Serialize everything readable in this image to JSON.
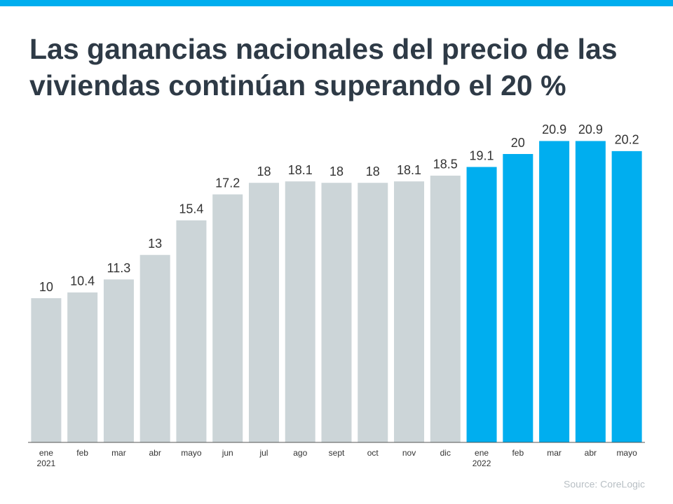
{
  "chart_data": {
    "type": "bar",
    "title": "Las ganancias nacionales del precio de las viviendas continúan superando el 20 %",
    "categories": [
      [
        "ene",
        "2021"
      ],
      [
        "feb"
      ],
      [
        "mar"
      ],
      [
        "abr"
      ],
      [
        "mayo"
      ],
      [
        "jun"
      ],
      [
        "jul"
      ],
      [
        "ago"
      ],
      [
        "sept"
      ],
      [
        "oct"
      ],
      [
        "nov"
      ],
      [
        "dic"
      ],
      [
        "ene",
        "2022"
      ],
      [
        "feb"
      ],
      [
        "mar"
      ],
      [
        "abr"
      ],
      [
        "mayo"
      ]
    ],
    "values": [
      10,
      10.4,
      11.3,
      13,
      15.4,
      17.2,
      18,
      18.1,
      18,
      18,
      18.1,
      18.5,
      19.1,
      20,
      20.9,
      20.9,
      20.2
    ],
    "colors": [
      "#ccd5d8",
      "#ccd5d8",
      "#ccd5d8",
      "#ccd5d8",
      "#ccd5d8",
      "#ccd5d8",
      "#ccd5d8",
      "#ccd5d8",
      "#ccd5d8",
      "#ccd5d8",
      "#ccd5d8",
      "#ccd5d8",
      "#00aeef",
      "#00aeef",
      "#00aeef",
      "#00aeef",
      "#00aeef"
    ],
    "ylim": [
      0,
      22
    ],
    "source": "Source: CoreLogic"
  }
}
